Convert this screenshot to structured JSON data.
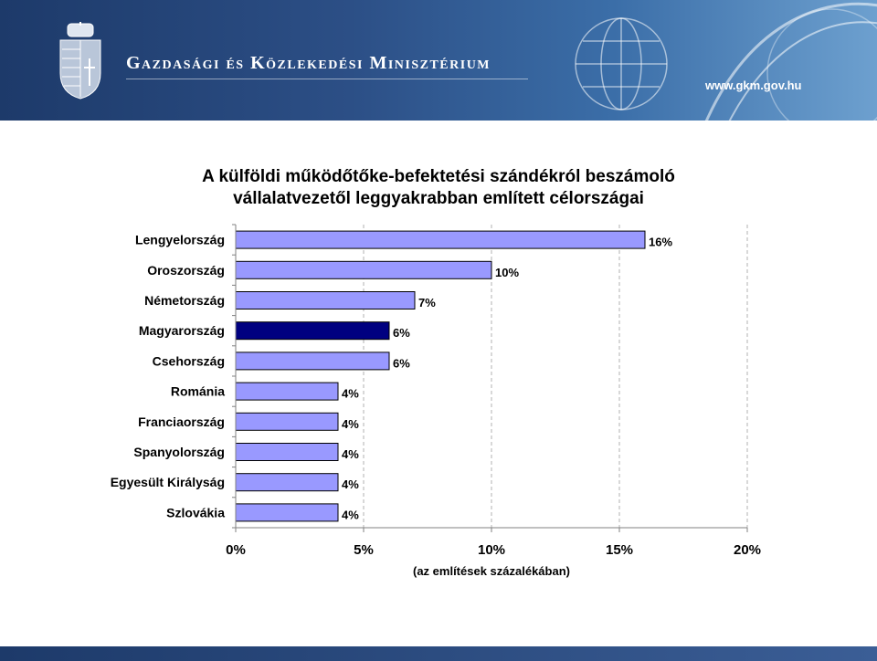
{
  "header": {
    "ministry": "Gazdasági és Közlekedési Minisztérium",
    "url": "www.gkm.gov.hu",
    "colors": {
      "dark": "#1d3a6a",
      "light": "#6da0cf"
    }
  },
  "chart_data": {
    "type": "bar",
    "orientation": "horizontal",
    "title_lines": [
      "A külföldi működőtőke-befektetési szándékról beszámoló",
      "vállalatvezetől leggyakrabban említett célországai"
    ],
    "categories": [
      "Lengyelország",
      "Oroszország",
      "Németország",
      "Magyarország",
      "Csehország",
      "Románia",
      "Franciaország",
      "Spanyolország",
      "Egyesült Királyság",
      "Szlovákia"
    ],
    "values": [
      16,
      10,
      7,
      6,
      6,
      4,
      4,
      4,
      4,
      4
    ],
    "value_labels": [
      "16%",
      "10%",
      "7%",
      "6%",
      "6%",
      "4%",
      "4%",
      "4%",
      "4%",
      "4%"
    ],
    "highlight_category": "Magyarország",
    "xlim": [
      0,
      20
    ],
    "xticks": [
      0,
      5,
      10,
      15,
      20
    ],
    "xtick_labels": [
      "0%",
      "5%",
      "10%",
      "15%",
      "20%"
    ],
    "xlabel": "(az említések százalékában)",
    "grid": "vertical-dashed",
    "colors": {
      "bar": "#9999ff",
      "highlight": "#000080",
      "border": "#000000"
    }
  }
}
